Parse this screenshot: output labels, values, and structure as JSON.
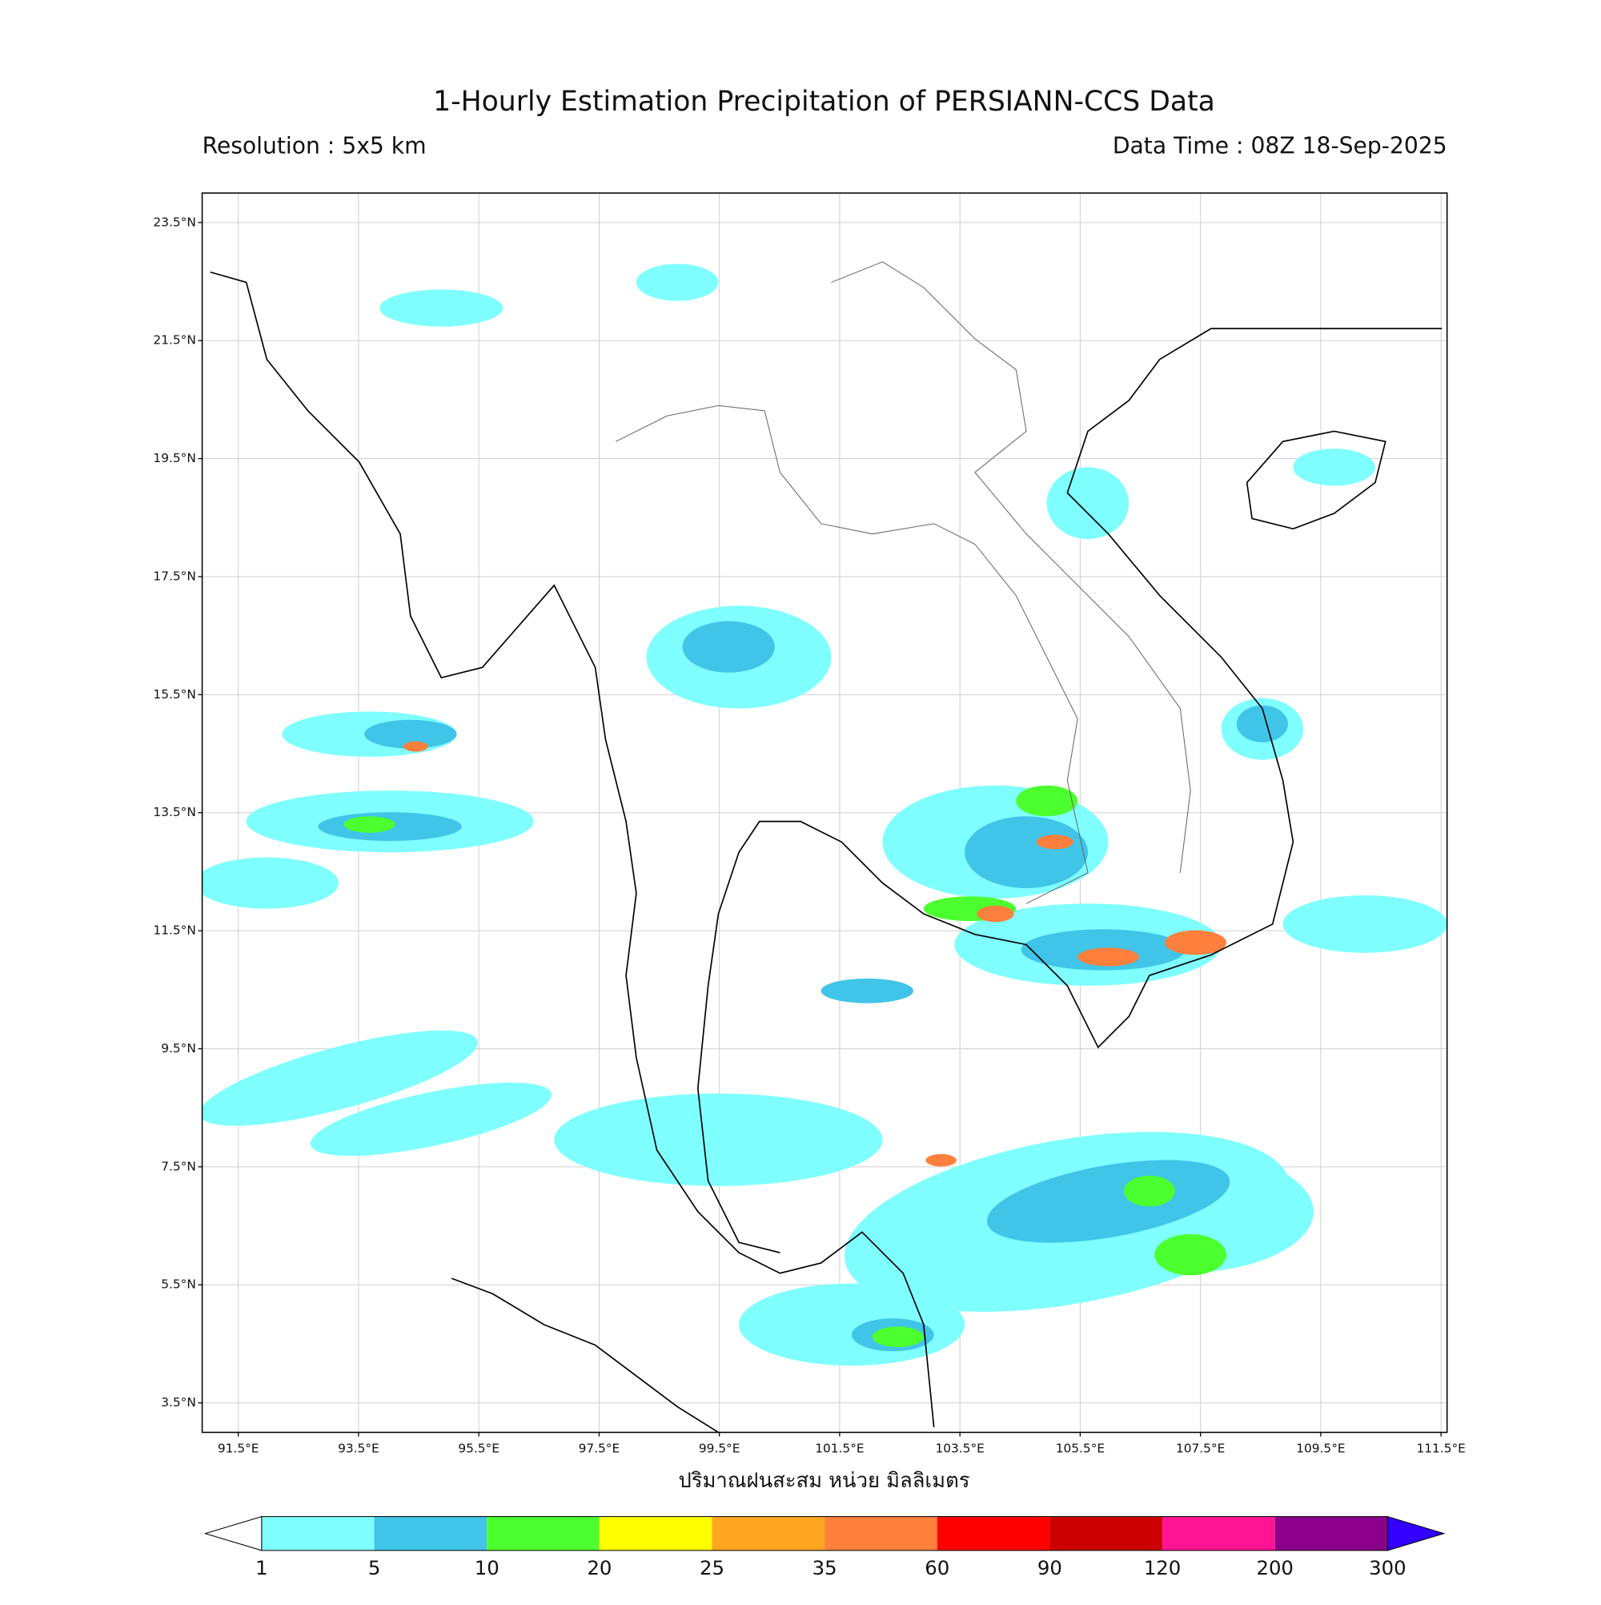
{
  "map": {
    "title": "1-Hourly Estimation Precipitation of PERSIANN-CCS Data",
    "resolution": "Resolution : 5x5 km",
    "data_time": "Data Time : 08Z 18-Sep-2025",
    "axis_label": "ปริมาณฝนสะสม หน่วย มิลลิเมตร",
    "lon_range": [
      90.9,
      111.6
    ],
    "lat_range": [
      3.0,
      24.0
    ],
    "lon_ticks": [
      {
        "value": 91.5,
        "label": "91.5°E"
      },
      {
        "value": 93.5,
        "label": "93.5°E"
      },
      {
        "value": 95.5,
        "label": "95.5°E"
      },
      {
        "value": 97.5,
        "label": "97.5°E"
      },
      {
        "value": 99.5,
        "label": "99.5°E"
      },
      {
        "value": 101.5,
        "label": "101.5°E"
      },
      {
        "value": 103.5,
        "label": "103.5°E"
      },
      {
        "value": 105.5,
        "label": "105.5°E"
      },
      {
        "value": 107.5,
        "label": "107.5°E"
      },
      {
        "value": 109.5,
        "label": "109.5°E"
      },
      {
        "value": 111.5,
        "label": "111.5°E"
      }
    ],
    "lat_ticks": [
      {
        "value": 3.5,
        "label": "3.5°N"
      },
      {
        "value": 5.5,
        "label": "5.5°N"
      },
      {
        "value": 7.5,
        "label": "7.5°N"
      },
      {
        "value": 9.5,
        "label": "9.5°N"
      },
      {
        "value": 11.5,
        "label": "11.5°N"
      },
      {
        "value": 13.5,
        "label": "13.5°N"
      },
      {
        "value": 15.5,
        "label": "15.5°N"
      },
      {
        "value": 17.5,
        "label": "17.5°N"
      },
      {
        "value": 19.5,
        "label": "19.5°N"
      },
      {
        "value": 21.5,
        "label": "21.5°N"
      },
      {
        "value": 23.5,
        "label": "23.5°N"
      }
    ],
    "grid": true,
    "colorbar": {
      "levels": [
        1,
        5,
        10,
        20,
        25,
        35,
        60,
        90,
        120,
        200,
        300
      ],
      "colors": [
        "#7fffff",
        "#40c4e8",
        "#4cff2e",
        "#ffff00",
        "#ffa620",
        "#ff7f3c",
        "#ff0000",
        "#cc0000",
        "#ff1493",
        "#8b008b"
      ],
      "under_color": "#ffffff",
      "over_color": "#3300ff"
    }
  }
}
